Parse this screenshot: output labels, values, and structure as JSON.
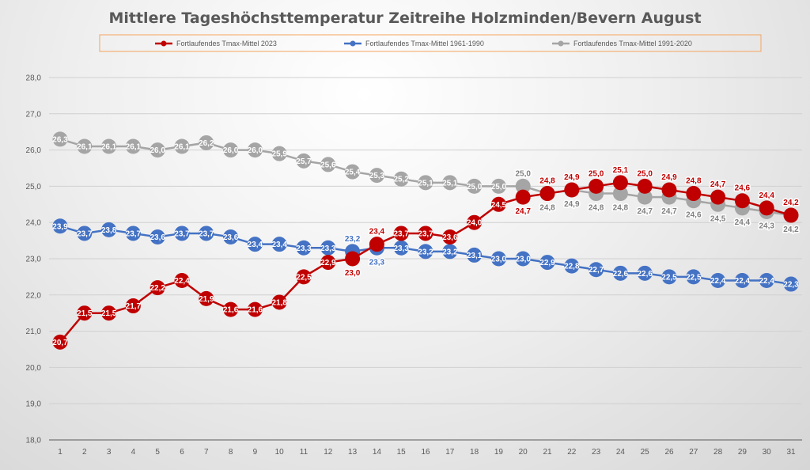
{
  "chart_data": {
    "type": "line",
    "title": "Mittlere Tageshöchsttemperatur Zeitreihe Holzminden/Bevern August",
    "xlabel": "",
    "ylabel": "",
    "ylim": [
      18,
      28
    ],
    "yticks": [
      "18,0",
      "19,0",
      "20,0",
      "21,0",
      "22,0",
      "23,0",
      "24,0",
      "25,0",
      "26,0",
      "27,0",
      "28,0"
    ],
    "x": [
      1,
      2,
      3,
      4,
      5,
      6,
      7,
      8,
      9,
      10,
      11,
      12,
      13,
      14,
      15,
      16,
      17,
      18,
      19,
      20,
      21,
      22,
      23,
      24,
      25,
      26,
      27,
      28,
      29,
      30,
      31
    ],
    "grid": true,
    "legend_position": "top",
    "series": [
      {
        "name": "Fortlaufendes Tmax-Mittel 1991-2020",
        "color": "#a5a5a5",
        "values": [
          26.3,
          26.1,
          26.1,
          26.1,
          26.0,
          26.1,
          26.2,
          26.0,
          26.0,
          25.9,
          25.7,
          25.6,
          25.4,
          25.3,
          25.2,
          25.1,
          25.1,
          25.0,
          25.0,
          25.0,
          24.8,
          24.9,
          24.8,
          24.8,
          24.7,
          24.7,
          24.6,
          24.5,
          24.4,
          24.3,
          24.2
        ]
      },
      {
        "name": "Fortlaufendes Tmax-Mittel 1961-1990",
        "color": "#4472c4",
        "values": [
          23.9,
          23.7,
          23.8,
          23.7,
          23.6,
          23.7,
          23.7,
          23.6,
          23.4,
          23.4,
          23.3,
          23.3,
          23.2,
          23.3,
          23.3,
          23.2,
          23.2,
          23.1,
          23.0,
          23.0,
          22.9,
          22.8,
          22.7,
          22.6,
          22.6,
          22.5,
          22.5,
          22.4,
          22.4,
          22.4,
          22.3
        ]
      },
      {
        "name": "Fortlaufendes Tmax-Mittel 2023",
        "color": "#c00000",
        "values": [
          20.7,
          21.5,
          21.5,
          21.7,
          22.2,
          22.4,
          21.9,
          21.6,
          21.6,
          21.8,
          22.5,
          22.9,
          23.0,
          23.4,
          23.7,
          23.7,
          23.6,
          24.0,
          24.5,
          24.7,
          24.8,
          24.9,
          25.0,
          25.1,
          25.0,
          24.9,
          24.8,
          24.7,
          24.6,
          24.4,
          24.2
        ]
      }
    ],
    "legend_order": [
      2,
      1,
      0
    ]
  }
}
